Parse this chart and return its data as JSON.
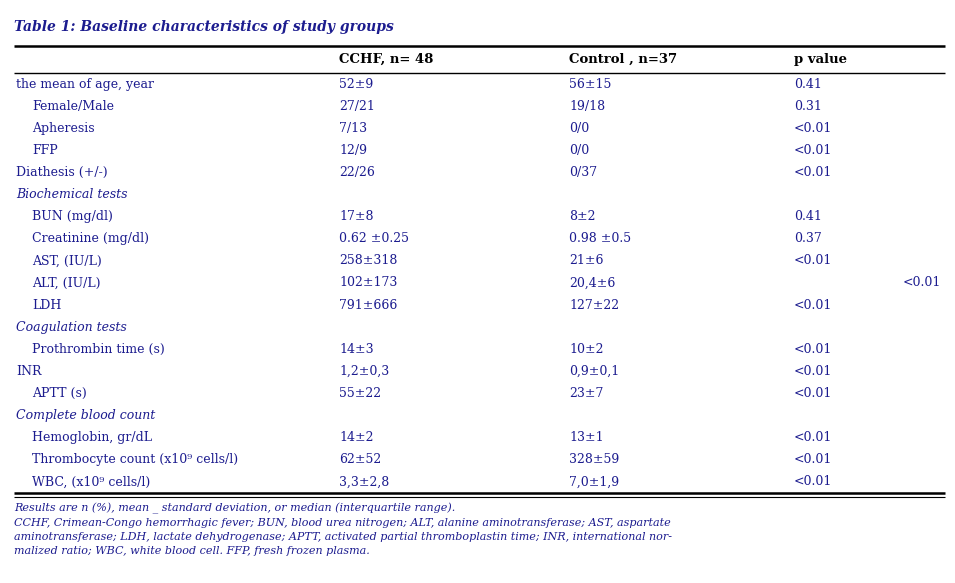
{
  "title": "Table 1: Baseline characteristics of study groups",
  "col_headers": [
    "",
    "CCHF, n= 48",
    "Control , n=37",
    "p value"
  ],
  "rows": [
    {
      "label": "the mean of age, year",
      "cchf": "52±9",
      "ctrl": "56±15",
      "pval": "0.41",
      "style": "normal",
      "indent": false,
      "pval_right": false
    },
    {
      "label": "Female/Male",
      "cchf": "27/21",
      "ctrl": "19/18",
      "pval": "0.31",
      "style": "normal",
      "indent": true,
      "pval_right": false
    },
    {
      "label": "Apheresis",
      "cchf": "7/13",
      "ctrl": "0/0",
      "pval": "<0.01",
      "style": "normal",
      "indent": true,
      "pval_right": false
    },
    {
      "label": "FFP",
      "cchf": "12/9",
      "ctrl": "0/0",
      "pval": "<0.01",
      "style": "normal",
      "indent": true,
      "pval_right": false
    },
    {
      "label": "Diathesis (+/-)",
      "cchf": "22/26",
      "ctrl": "0/37",
      "pval": "<0.01",
      "style": "normal",
      "indent": false,
      "pval_right": false
    },
    {
      "label": "Biochemical tests",
      "cchf": "",
      "ctrl": "",
      "pval": "",
      "style": "italic",
      "indent": false,
      "pval_right": false
    },
    {
      "label": "BUN (mg/dl)",
      "cchf": "17±8",
      "ctrl": "8±2",
      "pval": "0.41",
      "style": "normal",
      "indent": true,
      "pval_right": false
    },
    {
      "label": "Creatinine (mg/dl)",
      "cchf": "0.62 ±0.25",
      "ctrl": "0.98 ±0.5",
      "pval": "0.37",
      "style": "normal",
      "indent": true,
      "pval_right": false
    },
    {
      "label": "AST, (IU/L)",
      "cchf": "258±318",
      "ctrl": "21±6",
      "pval": "<0.01",
      "style": "normal",
      "indent": true,
      "pval_right": false
    },
    {
      "label": "ALT, (IU/L)",
      "cchf": "102±173",
      "ctrl": "20,4±6",
      "pval": "<0.01",
      "style": "normal",
      "indent": true,
      "pval_right": true
    },
    {
      "label": "LDH",
      "cchf": "791±666",
      "ctrl": "127±22",
      "pval": "<0.01",
      "style": "normal",
      "indent": true,
      "pval_right": false
    },
    {
      "label": "Coagulation tests",
      "cchf": "",
      "ctrl": "",
      "pval": "",
      "style": "italic",
      "indent": false,
      "pval_right": false
    },
    {
      "label": "Prothrombin time (s)",
      "cchf": "14±3",
      "ctrl": "10±2",
      "pval": "<0.01",
      "style": "normal",
      "indent": true,
      "pval_right": false
    },
    {
      "label": "INR",
      "cchf": "1,2±0,3",
      "ctrl": "0,9±0,1",
      "pval": "<0.01",
      "style": "normal",
      "indent": false,
      "pval_right": false
    },
    {
      "label": "APTT (s)",
      "cchf": "55±22",
      "ctrl": "23±7",
      "pval": "<0.01",
      "style": "normal",
      "indent": true,
      "pval_right": false
    },
    {
      "label": "Complete blood count",
      "cchf": "",
      "ctrl": "",
      "pval": "",
      "style": "italic",
      "indent": false,
      "pval_right": false
    },
    {
      "label": "Hemoglobin, gr/dL",
      "cchf": "14±2",
      "ctrl": "13±1",
      "pval": "<0.01",
      "style": "normal",
      "indent": true,
      "pval_right": false
    },
    {
      "label": "Thrombocyte count (x10⁹ cells/l)",
      "cchf": "62±52",
      "ctrl": "328±59",
      "pval": "<0.01",
      "style": "normal",
      "indent": true,
      "pval_right": false
    },
    {
      "label": "WBC, (x10⁹ cells/l)",
      "cchf": "3,3±2,8",
      "ctrl": "7,0±1,9",
      "pval": "<0.01",
      "style": "normal",
      "indent": true,
      "pval_right": false
    }
  ],
  "footnotes": [
    "Results are n (%), mean _ standard deviation, or median (interquartile range).",
    "CCHF, Crimean-Congo hemorrhagic fever; BUN, blood urea nitrogen; ALT, alanine aminotransferase; AST, aspartate",
    "aminotransferase; LDH, lactate dehydrogenase; APTT, activated partial thromboplastin time; INR, international nor-",
    "malized ratio; WBC, white blood cell. FFP, fresh frozen plasma."
  ],
  "title_color": "#1c1c8f",
  "header_color": "#000000",
  "text_color": "#1c1c8f",
  "italic_color": "#1c1c8f",
  "footnote_color": "#1c1c8f",
  "bg_color": "#ffffff"
}
